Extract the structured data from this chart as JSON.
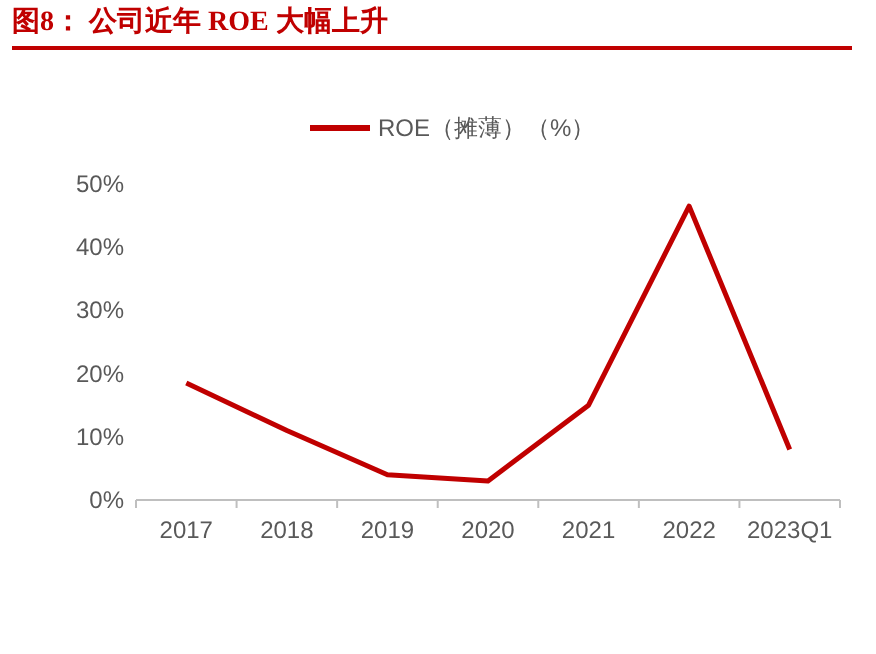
{
  "chart_data": {
    "type": "line",
    "title": "图8： 公司近年 ROE 大幅上升",
    "categories": [
      "2017",
      "2018",
      "2019",
      "2020",
      "2021",
      "2022",
      "2023Q1"
    ],
    "series": [
      {
        "name": "ROE（摊薄）（%）",
        "color": "#c00000",
        "values": [
          18.5,
          11,
          4,
          3,
          15,
          46.5,
          8
        ]
      }
    ],
    "ylim": [
      0,
      50
    ],
    "yticks": [
      {
        "value": 0,
        "label": "0%"
      },
      {
        "value": 10,
        "label": "10%"
      },
      {
        "value": 20,
        "label": "20%"
      },
      {
        "value": 30,
        "label": "30%"
      },
      {
        "value": 40,
        "label": "40%"
      },
      {
        "value": 50,
        "label": "50%"
      }
    ],
    "legend": "top",
    "grid": false,
    "marker": "none",
    "line_style": "solid"
  }
}
